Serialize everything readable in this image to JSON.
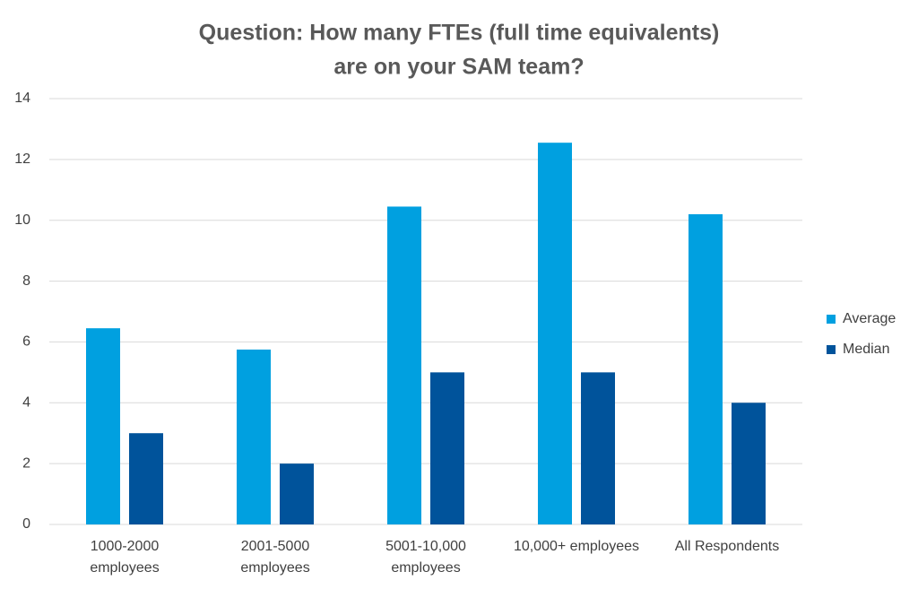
{
  "chart_data": {
    "type": "bar",
    "title": [
      "Question:  How many FTEs (full time equivalents)",
      "are on your SAM team?"
    ],
    "categories": [
      [
        "1000-2000",
        "employees"
      ],
      [
        "2001-5000",
        "employees"
      ],
      [
        "5001-10,000",
        "employees"
      ],
      [
        "10,000+ employees"
      ],
      [
        "All Respondents"
      ]
    ],
    "series": [
      {
        "name": "Average",
        "color": "#00a0e0",
        "values": [
          6.45,
          5.75,
          10.45,
          12.55,
          10.2
        ]
      },
      {
        "name": "Median",
        "color": "#00539b",
        "values": [
          3,
          2,
          5,
          5,
          4
        ]
      }
    ],
    "ylim": [
      0,
      14
    ],
    "yticks": [
      0,
      2,
      4,
      6,
      8,
      10,
      12,
      14
    ],
    "grid": true,
    "legend": "right"
  }
}
